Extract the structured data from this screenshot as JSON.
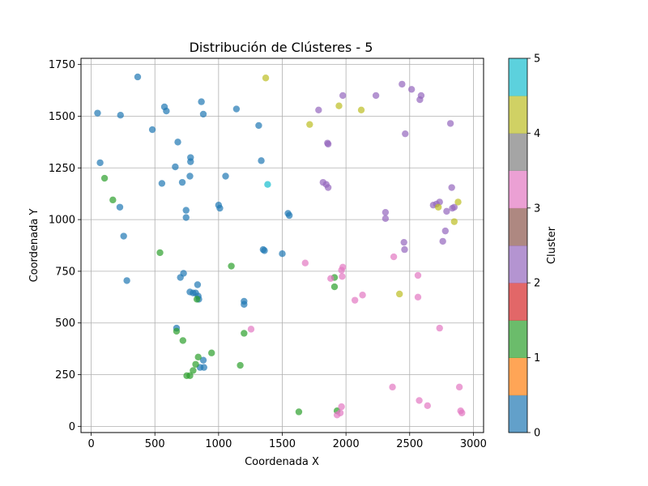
{
  "chart_data": {
    "type": "scatter",
    "title": "Distribución de Clústeres - 5",
    "xlabel": "Coordenada X",
    "ylabel": "Coordenada Y",
    "xlim": [
      -80,
      3080
    ],
    "ylim": [
      -30,
      1780
    ],
    "xticks": [
      0,
      500,
      1000,
      1500,
      2000,
      2500,
      3000
    ],
    "yticks": [
      0,
      250,
      500,
      750,
      1000,
      1250,
      1500,
      1750
    ],
    "grid": true,
    "colorbar": {
      "label": "Cluster",
      "range": [
        0,
        5
      ],
      "ticks": [
        0,
        1,
        2,
        3,
        4,
        5
      ],
      "colors": [
        "#1f77b4",
        "#ff7f0e",
        "#2ca02c",
        "#d62728",
        "#9467bd",
        "#8c564b",
        "#e377c2",
        "#7f7f7f",
        "#bcbd22",
        "#17becf"
      ]
    },
    "cluster_colors": {
      "0": "#1f77b4",
      "1": "#2ca02c",
      "2": "#9467bd",
      "3": "#e377c2",
      "4": "#bcbd22",
      "5": "#17becf"
    },
    "points": [
      {
        "x": 50,
        "y": 1515,
        "c": 0
      },
      {
        "x": 70,
        "y": 1275,
        "c": 0
      },
      {
        "x": 230,
        "y": 1505,
        "c": 0
      },
      {
        "x": 365,
        "y": 1690,
        "c": 0
      },
      {
        "x": 480,
        "y": 1435,
        "c": 0
      },
      {
        "x": 575,
        "y": 1545,
        "c": 0
      },
      {
        "x": 590,
        "y": 1525,
        "c": 0
      },
      {
        "x": 225,
        "y": 1060,
        "c": 0
      },
      {
        "x": 255,
        "y": 920,
        "c": 0
      },
      {
        "x": 280,
        "y": 705,
        "c": 0
      },
      {
        "x": 555,
        "y": 1175,
        "c": 0
      },
      {
        "x": 660,
        "y": 1255,
        "c": 0
      },
      {
        "x": 680,
        "y": 1375,
        "c": 0
      },
      {
        "x": 715,
        "y": 1180,
        "c": 0
      },
      {
        "x": 745,
        "y": 1045,
        "c": 0
      },
      {
        "x": 745,
        "y": 1010,
        "c": 0
      },
      {
        "x": 775,
        "y": 1210,
        "c": 0
      },
      {
        "x": 780,
        "y": 1300,
        "c": 0
      },
      {
        "x": 780,
        "y": 1280,
        "c": 0
      },
      {
        "x": 865,
        "y": 1570,
        "c": 0
      },
      {
        "x": 880,
        "y": 1510,
        "c": 0
      },
      {
        "x": 1000,
        "y": 1070,
        "c": 0
      },
      {
        "x": 1010,
        "y": 1055,
        "c": 0
      },
      {
        "x": 1055,
        "y": 1210,
        "c": 0
      },
      {
        "x": 1140,
        "y": 1535,
        "c": 0
      },
      {
        "x": 1315,
        "y": 1455,
        "c": 0
      },
      {
        "x": 1335,
        "y": 1285,
        "c": 0
      },
      {
        "x": 1350,
        "y": 855,
        "c": 0
      },
      {
        "x": 1360,
        "y": 850,
        "c": 0
      },
      {
        "x": 1500,
        "y": 835,
        "c": 0
      },
      {
        "x": 1545,
        "y": 1030,
        "c": 0
      },
      {
        "x": 1555,
        "y": 1020,
        "c": 0
      },
      {
        "x": 700,
        "y": 720,
        "c": 0
      },
      {
        "x": 725,
        "y": 740,
        "c": 0
      },
      {
        "x": 775,
        "y": 650,
        "c": 0
      },
      {
        "x": 800,
        "y": 645,
        "c": 0
      },
      {
        "x": 820,
        "y": 645,
        "c": 0
      },
      {
        "x": 835,
        "y": 685,
        "c": 0
      },
      {
        "x": 840,
        "y": 630,
        "c": 0
      },
      {
        "x": 845,
        "y": 615,
        "c": 0
      },
      {
        "x": 1200,
        "y": 605,
        "c": 0
      },
      {
        "x": 1200,
        "y": 590,
        "c": 0
      },
      {
        "x": 670,
        "y": 475,
        "c": 0
      },
      {
        "x": 855,
        "y": 285,
        "c": 0
      },
      {
        "x": 880,
        "y": 320,
        "c": 0
      },
      {
        "x": 885,
        "y": 285,
        "c": 0
      },
      {
        "x": 105,
        "y": 1200,
        "c": 1
      },
      {
        "x": 170,
        "y": 1095,
        "c": 1
      },
      {
        "x": 540,
        "y": 840,
        "c": 1
      },
      {
        "x": 670,
        "y": 460,
        "c": 1
      },
      {
        "x": 720,
        "y": 415,
        "c": 1
      },
      {
        "x": 750,
        "y": 245,
        "c": 1
      },
      {
        "x": 775,
        "y": 245,
        "c": 1
      },
      {
        "x": 800,
        "y": 270,
        "c": 1
      },
      {
        "x": 820,
        "y": 300,
        "c": 1
      },
      {
        "x": 830,
        "y": 615,
        "c": 1
      },
      {
        "x": 840,
        "y": 335,
        "c": 1
      },
      {
        "x": 945,
        "y": 355,
        "c": 1
      },
      {
        "x": 1100,
        "y": 775,
        "c": 1
      },
      {
        "x": 1170,
        "y": 295,
        "c": 1
      },
      {
        "x": 1200,
        "y": 450,
        "c": 1
      },
      {
        "x": 1630,
        "y": 70,
        "c": 1
      },
      {
        "x": 1910,
        "y": 720,
        "c": 1
      },
      {
        "x": 1910,
        "y": 675,
        "c": 1
      },
      {
        "x": 1930,
        "y": 75,
        "c": 1
      },
      {
        "x": 1785,
        "y": 1530,
        "c": 2
      },
      {
        "x": 1820,
        "y": 1180,
        "c": 2
      },
      {
        "x": 1845,
        "y": 1170,
        "c": 2
      },
      {
        "x": 1855,
        "y": 1370,
        "c": 2
      },
      {
        "x": 1860,
        "y": 1365,
        "c": 2
      },
      {
        "x": 1860,
        "y": 1155,
        "c": 2
      },
      {
        "x": 1975,
        "y": 1600,
        "c": 2
      },
      {
        "x": 2235,
        "y": 1600,
        "c": 2
      },
      {
        "x": 2310,
        "y": 1035,
        "c": 2
      },
      {
        "x": 2310,
        "y": 1005,
        "c": 2
      },
      {
        "x": 2440,
        "y": 1655,
        "c": 2
      },
      {
        "x": 2455,
        "y": 890,
        "c": 2
      },
      {
        "x": 2460,
        "y": 855,
        "c": 2
      },
      {
        "x": 2465,
        "y": 1415,
        "c": 2
      },
      {
        "x": 2515,
        "y": 1630,
        "c": 2
      },
      {
        "x": 2580,
        "y": 1580,
        "c": 2
      },
      {
        "x": 2590,
        "y": 1600,
        "c": 2
      },
      {
        "x": 2685,
        "y": 1070,
        "c": 2
      },
      {
        "x": 2710,
        "y": 1075,
        "c": 2
      },
      {
        "x": 2735,
        "y": 1085,
        "c": 2
      },
      {
        "x": 2760,
        "y": 895,
        "c": 2
      },
      {
        "x": 2780,
        "y": 945,
        "c": 2
      },
      {
        "x": 2790,
        "y": 1040,
        "c": 2
      },
      {
        "x": 2820,
        "y": 1465,
        "c": 2
      },
      {
        "x": 2830,
        "y": 1155,
        "c": 2
      },
      {
        "x": 2835,
        "y": 1055,
        "c": 2
      },
      {
        "x": 2850,
        "y": 1060,
        "c": 2
      },
      {
        "x": 1680,
        "y": 790,
        "c": 3
      },
      {
        "x": 1880,
        "y": 715,
        "c": 3
      },
      {
        "x": 1965,
        "y": 755,
        "c": 3
      },
      {
        "x": 1970,
        "y": 725,
        "c": 3
      },
      {
        "x": 1975,
        "y": 770,
        "c": 3
      },
      {
        "x": 2070,
        "y": 610,
        "c": 3
      },
      {
        "x": 2130,
        "y": 635,
        "c": 3
      },
      {
        "x": 1255,
        "y": 470,
        "c": 3
      },
      {
        "x": 2375,
        "y": 820,
        "c": 3
      },
      {
        "x": 2565,
        "y": 730,
        "c": 3
      },
      {
        "x": 2565,
        "y": 625,
        "c": 3
      },
      {
        "x": 2735,
        "y": 475,
        "c": 3
      },
      {
        "x": 2365,
        "y": 190,
        "c": 3
      },
      {
        "x": 2575,
        "y": 125,
        "c": 3
      },
      {
        "x": 2640,
        "y": 100,
        "c": 3
      },
      {
        "x": 2890,
        "y": 190,
        "c": 3
      },
      {
        "x": 2900,
        "y": 75,
        "c": 3
      },
      {
        "x": 2910,
        "y": 65,
        "c": 3
      },
      {
        "x": 1930,
        "y": 55,
        "c": 3
      },
      {
        "x": 1955,
        "y": 65,
        "c": 3
      },
      {
        "x": 1965,
        "y": 95,
        "c": 3
      },
      {
        "x": 1370,
        "y": 1685,
        "c": 4
      },
      {
        "x": 1715,
        "y": 1460,
        "c": 4
      },
      {
        "x": 1945,
        "y": 1550,
        "c": 4
      },
      {
        "x": 2120,
        "y": 1530,
        "c": 4
      },
      {
        "x": 2420,
        "y": 640,
        "c": 4
      },
      {
        "x": 2725,
        "y": 1060,
        "c": 4
      },
      {
        "x": 2850,
        "y": 990,
        "c": 4
      },
      {
        "x": 2880,
        "y": 1085,
        "c": 4
      },
      {
        "x": 1385,
        "y": 1170,
        "c": 5
      }
    ]
  }
}
